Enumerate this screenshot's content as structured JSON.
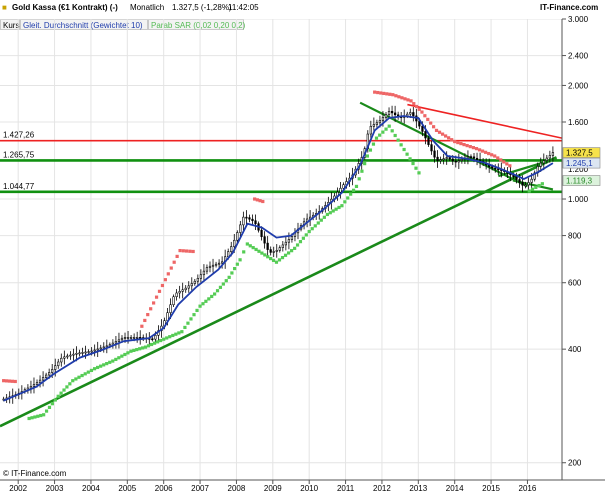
{
  "header": {
    "title": "Gold Kassa (€1 Kontrakt) (-)",
    "period": "Monatlich",
    "quote": "1.327,5 (-1,28%)",
    "time": "11:42:05",
    "brand": "IT-Finance.com"
  },
  "legend": {
    "price": "Kurs",
    "ma": "Gleit. Durchschnitt (Gewichtet 10)",
    "sar": "Parab SAR (0,02 0,20 0,2)"
  },
  "copyright": "© IT-Finance.com",
  "colors": {
    "ma": "#1f3cab",
    "horizontal_levels": "#109010",
    "uptrend": "#1a8a1a",
    "resistance": "#ee2222",
    "sar_bull": "#55cc55",
    "sar_bear": "#ee6666",
    "candle": "#000000",
    "quote_badge": "#f6e24a",
    "ma_badge": "#dce6f2",
    "sar_badge": "#dcf2dc"
  },
  "chart_data": {
    "type": "line",
    "scale": "log",
    "ylim": [
      180,
      3000
    ],
    "xlim": [
      2001.5,
      2016.95
    ],
    "y_ticks": [
      200,
      400,
      600,
      800,
      1000,
      1600,
      2000,
      2400,
      3000
    ],
    "y_tick_labels": [
      "200",
      "400",
      "600",
      "800",
      "1.000",
      "1.600",
      "2.000",
      "2.400",
      "3.000"
    ],
    "x_ticks": [
      2002,
      2003,
      2004,
      2005,
      2006,
      2007,
      2008,
      2009,
      2010,
      2011,
      2012,
      2013,
      2014,
      2015,
      2016
    ],
    "x_tick_labels": [
      "2002",
      "2003",
      "2004",
      "2005",
      "2006",
      "2007",
      "2008",
      "2009",
      "2010",
      "2011",
      "2012",
      "2013",
      "2014",
      "2015",
      "2016"
    ],
    "price_points": [
      [
        2001.6,
        295
      ],
      [
        2002.0,
        305
      ],
      [
        2002.5,
        325
      ],
      [
        2002.9,
        350
      ],
      [
        2003.2,
        380
      ],
      [
        2003.6,
        390
      ],
      [
        2004.0,
        395
      ],
      [
        2004.5,
        410
      ],
      [
        2004.9,
        430
      ],
      [
        2005.3,
        430
      ],
      [
        2005.7,
        425
      ],
      [
        2006.0,
        470
      ],
      [
        2006.3,
        560
      ],
      [
        2006.6,
        580
      ],
      [
        2006.9,
        610
      ],
      [
        2007.2,
        660
      ],
      [
        2007.6,
        680
      ],
      [
        2007.9,
        760
      ],
      [
        2008.2,
        900
      ],
      [
        2008.5,
        870
      ],
      [
        2008.9,
        720
      ],
      [
        2009.1,
        730
      ],
      [
        2009.5,
        790
      ],
      [
        2009.9,
        880
      ],
      [
        2010.3,
        930
      ],
      [
        2010.7,
        1020
      ],
      [
        2010.9,
        1080
      ],
      [
        2011.2,
        1160
      ],
      [
        2011.5,
        1320
      ],
      [
        2011.65,
        1550
      ],
      [
        2011.9,
        1600
      ],
      [
        2012.2,
        1710
      ],
      [
        2012.5,
        1640
      ],
      [
        2012.8,
        1700
      ],
      [
        2013.1,
        1520
      ],
      [
        2013.3,
        1380
      ],
      [
        2013.5,
        1260
      ],
      [
        2013.8,
        1290
      ],
      [
        2014.0,
        1250
      ],
      [
        2014.4,
        1300
      ],
      [
        2014.7,
        1260
      ],
      [
        2015.0,
        1210
      ],
      [
        2015.3,
        1190
      ],
      [
        2015.6,
        1150
      ],
      [
        2015.9,
        1080
      ],
      [
        2016.1,
        1120
      ],
      [
        2016.3,
        1230
      ],
      [
        2016.6,
        1300
      ],
      [
        2016.7,
        1327.5
      ]
    ],
    "ma_points": [
      [
        2001.6,
        292
      ],
      [
        2002.5,
        318
      ],
      [
        2003.0,
        345
      ],
      [
        2003.7,
        380
      ],
      [
        2004.3,
        398
      ],
      [
        2004.9,
        420
      ],
      [
        2005.6,
        428
      ],
      [
        2006.0,
        455
      ],
      [
        2006.4,
        525
      ],
      [
        2006.9,
        585
      ],
      [
        2007.5,
        650
      ],
      [
        2007.9,
        720
      ],
      [
        2008.3,
        860
      ],
      [
        2008.7,
        840
      ],
      [
        2009.1,
        790
      ],
      [
        2009.5,
        800
      ],
      [
        2009.9,
        860
      ],
      [
        2010.4,
        940
      ],
      [
        2010.9,
        1040
      ],
      [
        2011.4,
        1230
      ],
      [
        2011.8,
        1520
      ],
      [
        2012.2,
        1640
      ],
      [
        2012.6,
        1660
      ],
      [
        2013.0,
        1640
      ],
      [
        2013.4,
        1430
      ],
      [
        2013.8,
        1300
      ],
      [
        2014.3,
        1280
      ],
      [
        2014.8,
        1250
      ],
      [
        2015.2,
        1210
      ],
      [
        2015.6,
        1165
      ],
      [
        2015.9,
        1130
      ],
      [
        2016.3,
        1180
      ],
      [
        2016.7,
        1245.1
      ]
    ],
    "horizontal_levels": [
      1427.26,
      1265.75,
      1044.77
    ],
    "horizontal_level_labels": [
      "1.427,26",
      "1.265,75",
      "1.044,77"
    ],
    "uptrend_line": [
      [
        2001.5,
        250
      ],
      [
        2016.8,
        1290
      ]
    ],
    "resistance_line": [
      [
        2012.7,
        1780
      ],
      [
        2016.95,
        1450
      ]
    ],
    "retrace_line": [
      [
        2011.4,
        1800
      ],
      [
        2016.0,
        1080
      ]
    ],
    "wedge_lower": [
      [
        2015.2,
        1150
      ],
      [
        2016.8,
        1280
      ]
    ],
    "wedge_upper": [
      [
        2015.6,
        1120
      ],
      [
        2016.7,
        1060
      ]
    ],
    "sar_bull_points": [
      [
        2002.3,
        262
      ],
      [
        2002.7,
        268
      ],
      [
        2003.1,
        300
      ],
      [
        2003.5,
        330
      ],
      [
        2004.1,
        355
      ],
      [
        2004.6,
        372
      ],
      [
        2005.1,
        395
      ],
      [
        2005.5,
        405
      ],
      [
        2006.0,
        425
      ],
      [
        2006.5,
        445
      ],
      [
        2007.0,
        520
      ],
      [
        2007.4,
        560
      ],
      [
        2007.8,
        620
      ],
      [
        2008.1,
        690
      ],
      [
        2008.3,
        760
      ],
      [
        2009.1,
        680
      ],
      [
        2009.6,
        740
      ],
      [
        2010.0,
        820
      ],
      [
        2010.5,
        910
      ],
      [
        2010.9,
        960
      ],
      [
        2011.3,
        1080
      ],
      [
        2011.6,
        1300
      ],
      [
        2011.85,
        1450
      ],
      [
        2012.2,
        1560
      ],
      [
        2013.1,
        1140
      ],
      [
        2016.05,
        1050
      ],
      [
        2016.5,
        1110
      ]
    ],
    "sar_bear_points": [
      [
        2001.6,
        330
      ],
      [
        2002.0,
        328
      ],
      [
        2005.4,
        460
      ],
      [
        2006.45,
        730
      ],
      [
        2006.9,
        725
      ],
      [
        2008.5,
        1000
      ],
      [
        2008.8,
        980
      ],
      [
        2011.8,
        1920
      ],
      [
        2012.3,
        1890
      ],
      [
        2012.8,
        1820
      ],
      [
        2013.1,
        1700
      ],
      [
        2013.5,
        1520
      ],
      [
        2014.0,
        1420
      ],
      [
        2014.6,
        1360
      ],
      [
        2015.1,
        1300
      ],
      [
        2015.6,
        1210
      ]
    ],
    "badges": [
      {
        "label": "1.327,5",
        "value": 1327.5
      },
      {
        "label": "1.245,1",
        "value": 1245.1
      },
      {
        "label": "1.119,3",
        "value": 1119.3
      }
    ],
    "extra_tick_label": "1.200"
  }
}
